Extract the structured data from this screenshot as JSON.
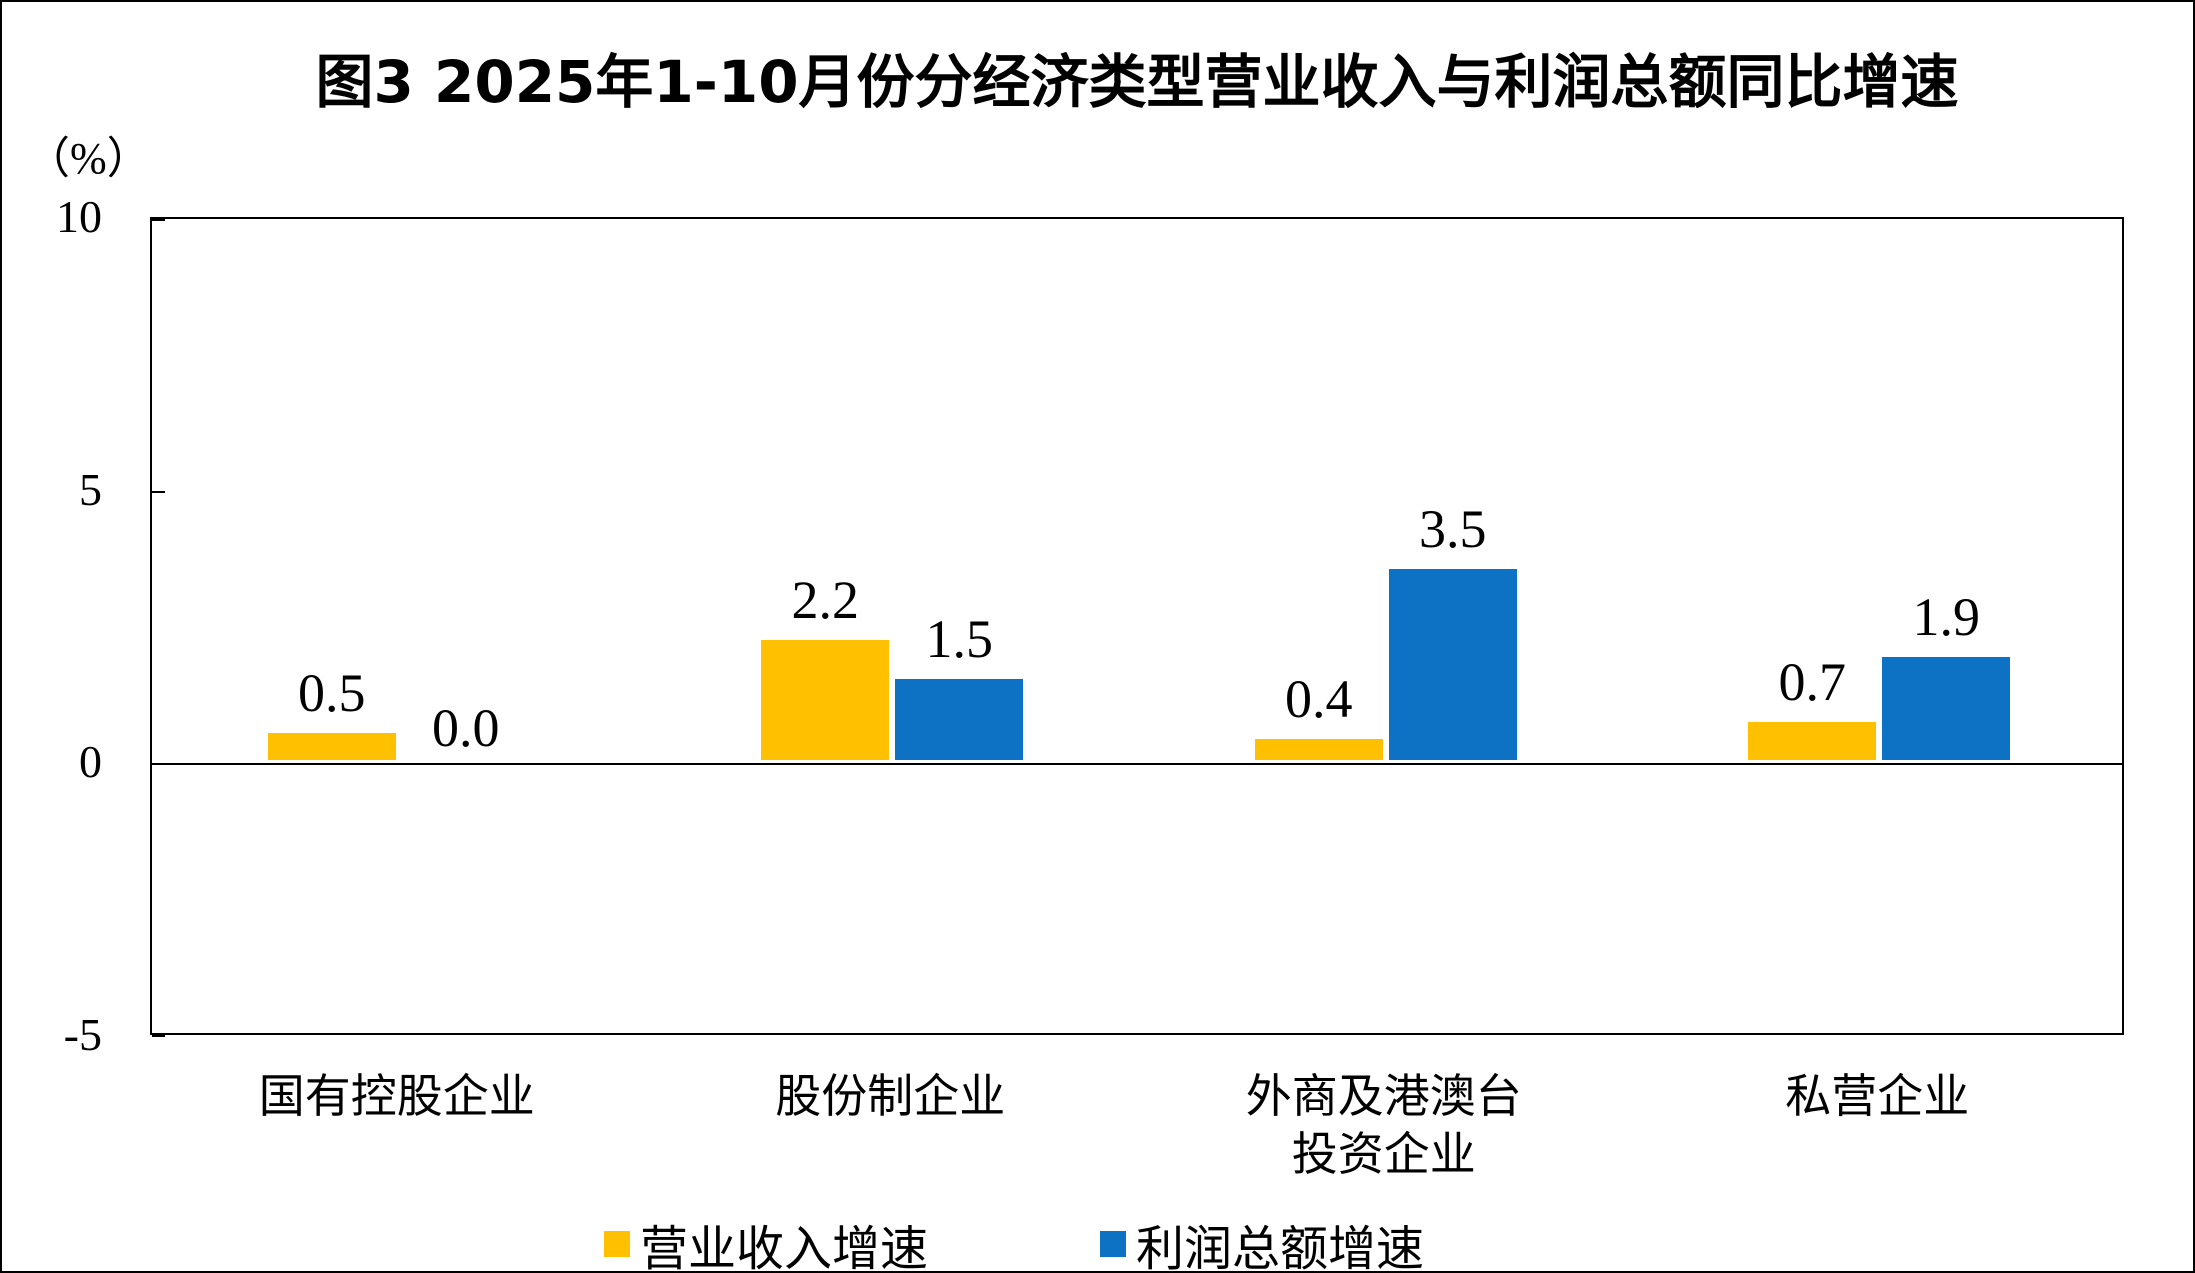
{
  "figure": {
    "unit_label": "（%）"
  },
  "chart_data": {
    "type": "bar",
    "title": "图3  2025年1-10月份分经济类型营业收入与利润总额同比增速",
    "unit_label": "（%）",
    "categories": [
      "国有控股企业",
      "股份制企业",
      "外商及港澳台\n投资企业",
      "私营企业"
    ],
    "series": [
      {
        "name": "营业收入增速",
        "color": "#FFC000",
        "values": [
          0.5,
          2.2,
          0.4,
          0.7
        ]
      },
      {
        "name": "利润总额增速",
        "color": "#0D72C4",
        "values": [
          0.0,
          1.5,
          3.5,
          1.9
        ]
      }
    ],
    "data_labels": [
      "0.5",
      "0.0",
      "2.2",
      "1.5",
      "0.4",
      "3.5",
      "0.7",
      "1.9"
    ],
    "ylim": [
      -5,
      10
    ],
    "yticks": [
      10,
      5,
      0,
      -5
    ],
    "xlabel": "",
    "ylabel": "（%）",
    "grid": false,
    "legend_position": "bottom",
    "data_label_decimals": 1,
    "axis_color": "#000000",
    "background_color": "#ffffff"
  }
}
